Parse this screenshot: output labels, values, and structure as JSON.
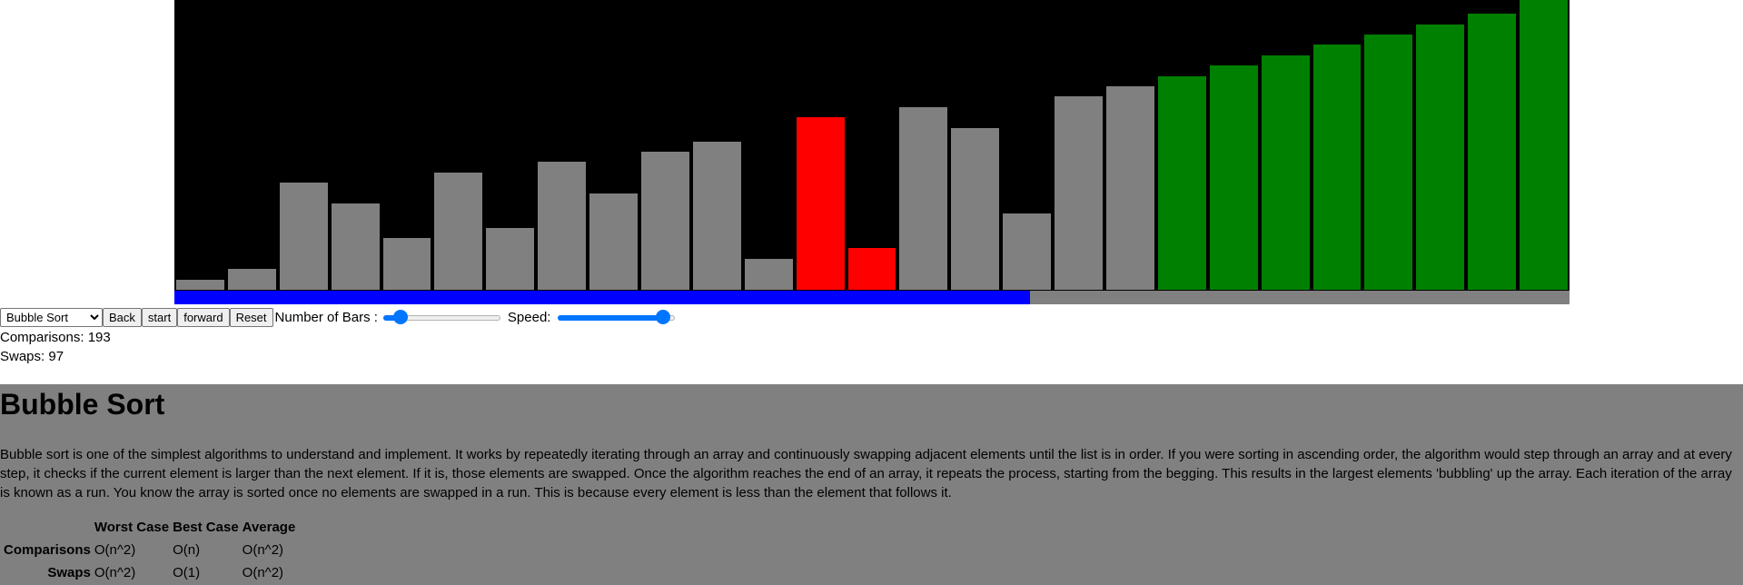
{
  "visualizer": {
    "colors": {
      "background": "#000000",
      "unsorted": "#808080",
      "comparing": "#ff0000",
      "sorted": "#008000",
      "progress": "#0000ff",
      "progress_track": "#808080"
    },
    "bar_count": 27,
    "progress_fraction": 0.613,
    "bars": [
      {
        "value": 3,
        "state": "unsorted"
      },
      {
        "value": 6,
        "state": "unsorted"
      },
      {
        "value": 31,
        "state": "unsorted"
      },
      {
        "value": 25,
        "state": "unsorted"
      },
      {
        "value": 15,
        "state": "unsorted"
      },
      {
        "value": 34,
        "state": "unsorted"
      },
      {
        "value": 18,
        "state": "unsorted"
      },
      {
        "value": 37,
        "state": "unsorted"
      },
      {
        "value": 28,
        "state": "unsorted"
      },
      {
        "value": 40,
        "state": "unsorted"
      },
      {
        "value": 43,
        "state": "unsorted"
      },
      {
        "value": 9,
        "state": "unsorted"
      },
      {
        "value": 50,
        "state": "comparing"
      },
      {
        "value": 12,
        "state": "comparing"
      },
      {
        "value": 53,
        "state": "unsorted"
      },
      {
        "value": 47,
        "state": "unsorted"
      },
      {
        "value": 22,
        "state": "unsorted"
      },
      {
        "value": 56,
        "state": "unsorted"
      },
      {
        "value": 59,
        "state": "unsorted"
      },
      {
        "value": 62,
        "state": "sorted"
      },
      {
        "value": 65,
        "state": "sorted"
      },
      {
        "value": 68,
        "state": "sorted"
      },
      {
        "value": 71,
        "state": "sorted"
      },
      {
        "value": 74,
        "state": "sorted"
      },
      {
        "value": 77,
        "state": "sorted"
      },
      {
        "value": 80,
        "state": "sorted"
      },
      {
        "value": 84,
        "state": "sorted"
      }
    ],
    "max_value": 84
  },
  "controls": {
    "algorithm_select": {
      "selected": "Bubble Sort",
      "options": [
        "Bubble Sort"
      ]
    },
    "back_label": "Back",
    "start_label": "start",
    "forward_label": "forward",
    "reset_label": "Reset",
    "bars_label": "Number of Bars :",
    "bars_slider_fraction": 0.1,
    "speed_label": "Speed:",
    "speed_slider_fraction": 0.95
  },
  "stats": {
    "comparisons": "Comparisons: 193",
    "swaps": "Swaps: 97"
  },
  "info": {
    "title": "Bubble Sort",
    "description": "Bubble sort is one of the simplest algorithms to understand and implement. It works by repeatedly iterating through an array and continuously swapping adjacent elements until the list is in order. If you were sorting in ascending order, the algorithm would step through an array and at every step, it checks if the current element is larger than the next element. If it is, those elements are swapped. Once the algorithm reaches the end of an array, it repeats the process, starting from the begging. This results in the largest elements 'bubbling' up the array. Each iteration of the array is known as a run. You know the array is sorted once no elements are swapped in a run. This is because every element is less than the element that follows it.",
    "table": {
      "headers": [
        "",
        "Worst Case",
        "Best Case",
        "Average"
      ],
      "rows": [
        {
          "label": "Comparisons",
          "cells": [
            "O(n^2)",
            "O(n)",
            "O(n^2)"
          ]
        },
        {
          "label": "Swaps",
          "cells": [
            "O(n^2)",
            "O(1)",
            "O(n^2)"
          ]
        }
      ]
    }
  }
}
